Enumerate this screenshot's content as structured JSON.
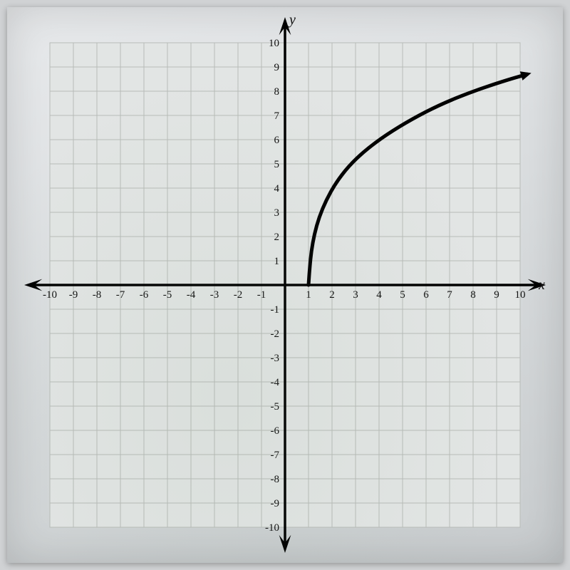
{
  "chart": {
    "type": "line",
    "xlabel": "x",
    "ylabel": "y",
    "xlim": [
      -10,
      10
    ],
    "ylim": [
      -10,
      10
    ],
    "xtick_step": 1,
    "ytick_step": 1,
    "xticks": [
      -10,
      -9,
      -8,
      -7,
      -6,
      -5,
      -4,
      -3,
      -2,
      -1,
      1,
      2,
      3,
      4,
      5,
      6,
      7,
      8,
      9,
      10
    ],
    "yticks": [
      -10,
      -9,
      -8,
      -7,
      -6,
      -5,
      -4,
      -3,
      -2,
      -1,
      1,
      2,
      3,
      4,
      5,
      6,
      7,
      8,
      9,
      10
    ],
    "grid": true,
    "grid_color": "#b8bcb8",
    "axis_color": "#000000",
    "background_color": "#e2e5e4",
    "tick_fontsize": 15,
    "axis_label_fontsize": 20,
    "curve": {
      "color": "#000000",
      "width": 5,
      "points": [
        [
          1.0,
          0.0
        ],
        [
          1.05,
          0.7
        ],
        [
          1.12,
          1.4
        ],
        [
          1.25,
          2.1
        ],
        [
          1.45,
          2.8
        ],
        [
          1.75,
          3.5
        ],
        [
          2.15,
          4.2
        ],
        [
          2.7,
          4.9
        ],
        [
          3.4,
          5.55
        ],
        [
          4.3,
          6.2
        ],
        [
          5.4,
          6.85
        ],
        [
          6.6,
          7.45
        ],
        [
          8.0,
          8.0
        ],
        [
          9.4,
          8.45
        ],
        [
          10.3,
          8.7
        ]
      ],
      "arrow_end": true
    },
    "axis_arrows": true
  }
}
